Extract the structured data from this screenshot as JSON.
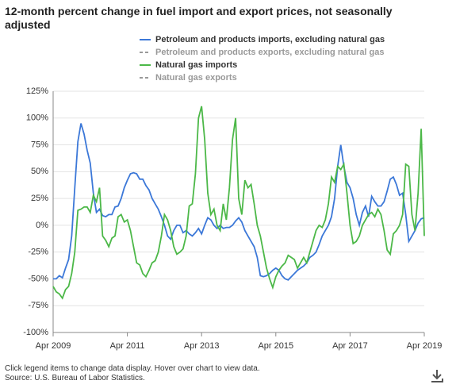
{
  "chart_data": {
    "type": "line",
    "title": "12-month percent change in fuel import and export prices, not seasonally adjusted",
    "notes": [
      "Click legend items to change data display. Hover over chart to view data.",
      "Source: U.S. Bureau of Labor Statistics."
    ],
    "categories": [
      "Apr 2009",
      "May 2009",
      "Jun 2009",
      "Jul 2009",
      "Aug 2009",
      "Sep 2009",
      "Oct 2009",
      "Nov 2009",
      "Dec 2009",
      "Jan 2010",
      "Feb 2010",
      "Mar 2010",
      "Apr 2010",
      "May 2010",
      "Jun 2010",
      "Jul 2010",
      "Aug 2010",
      "Sep 2010",
      "Oct 2010",
      "Nov 2010",
      "Dec 2010",
      "Jan 2011",
      "Feb 2011",
      "Mar 2011",
      "Apr 2011",
      "May 2011",
      "Jun 2011",
      "Jul 2011",
      "Aug 2011",
      "Sep 2011",
      "Oct 2011",
      "Nov 2011",
      "Dec 2011",
      "Jan 2012",
      "Feb 2012",
      "Mar 2012",
      "Apr 2012",
      "May 2012",
      "Jun 2012",
      "Jul 2012",
      "Aug 2012",
      "Sep 2012",
      "Oct 2012",
      "Nov 2012",
      "Dec 2012",
      "Jan 2013",
      "Feb 2013",
      "Mar 2013",
      "Apr 2013",
      "May 2013",
      "Jun 2013",
      "Jul 2013",
      "Aug 2013",
      "Sep 2013",
      "Oct 2013",
      "Nov 2013",
      "Dec 2013",
      "Jan 2014",
      "Feb 2014",
      "Mar 2014",
      "Apr 2014",
      "May 2014",
      "Jun 2014",
      "Jul 2014",
      "Aug 2014",
      "Sep 2014",
      "Oct 2014",
      "Nov 2014",
      "Dec 2014",
      "Jan 2015",
      "Feb 2015",
      "Mar 2015",
      "Apr 2015",
      "May 2015",
      "Jun 2015",
      "Jul 2015",
      "Aug 2015",
      "Sep 2015",
      "Oct 2015",
      "Nov 2015",
      "Dec 2015",
      "Jan 2016",
      "Feb 2016",
      "Mar 2016",
      "Apr 2016",
      "May 2016",
      "Jun 2016",
      "Jul 2016",
      "Aug 2016",
      "Sep 2016",
      "Oct 2016",
      "Nov 2016",
      "Dec 2016",
      "Jan 2017",
      "Feb 2017",
      "Mar 2017",
      "Apr 2017",
      "May 2017",
      "Jun 2017",
      "Jul 2017",
      "Aug 2017",
      "Sep 2017",
      "Oct 2017",
      "Nov 2017",
      "Dec 2017",
      "Jan 2018",
      "Feb 2018",
      "Mar 2018",
      "Apr 2018",
      "May 2018",
      "Jun 2018",
      "Jul 2018",
      "Aug 2018",
      "Sep 2018",
      "Oct 2018",
      "Nov 2018",
      "Dec 2018",
      "Jan 2019",
      "Feb 2019",
      "Mar 2019",
      "Apr 2019"
    ],
    "xticks": [
      "Apr 2009",
      "Apr 2011",
      "Apr 2013",
      "Apr 2015",
      "Apr 2017",
      "Apr 2019"
    ],
    "series": [
      {
        "name": "Petroleum and products imports, excluding natural gas",
        "color": "#3c78d8",
        "values": [
          -50,
          -50,
          -47,
          -49,
          -40,
          -32,
          -10,
          35,
          78,
          95,
          85,
          70,
          58,
          30,
          12,
          15,
          9,
          8,
          10,
          10,
          17,
          18,
          25,
          35,
          42,
          48,
          49,
          48,
          43,
          43,
          37,
          33,
          25,
          20,
          15,
          8,
          0,
          -10,
          -13,
          -5,
          0,
          0,
          -7,
          -5,
          -8,
          -10,
          -7,
          -3,
          -8,
          0,
          7,
          5,
          0,
          -3,
          0,
          -3,
          -2,
          -2,
          0,
          4,
          7,
          3,
          -5,
          -10,
          -15,
          -20,
          -30,
          -47,
          -48,
          -47,
          -45,
          -42,
          -40,
          -42,
          -47,
          -50,
          -51,
          -48,
          -45,
          -42,
          -40,
          -38,
          -35,
          -30,
          -28,
          -25,
          -18,
          -10,
          -5,
          0,
          8,
          25,
          55,
          75,
          55,
          40,
          35,
          25,
          10,
          0,
          12,
          18,
          8,
          27,
          22,
          18,
          18,
          22,
          32,
          43,
          45,
          38,
          28,
          30,
          10,
          -15,
          -10,
          -5,
          2,
          6,
          7
        ]
      },
      {
        "name": "Petroleum and products exports, excluding natural gas",
        "color": "#999999",
        "hidden": true
      },
      {
        "name": "Natural gas imports",
        "color": "#4cb848",
        "values": [
          -57,
          -62,
          -64,
          -68,
          -60,
          -57,
          -45,
          -25,
          14,
          15,
          17,
          17,
          12,
          28,
          22,
          35,
          -10,
          -14,
          -20,
          -12,
          -10,
          8,
          10,
          3,
          5,
          -5,
          -20,
          -35,
          -37,
          -45,
          -48,
          -42,
          -35,
          -33,
          -25,
          -10,
          10,
          5,
          -5,
          -20,
          -27,
          -25,
          -22,
          -10,
          18,
          20,
          48,
          100,
          111,
          80,
          30,
          10,
          15,
          0,
          -5,
          20,
          5,
          35,
          80,
          100,
          25,
          10,
          42,
          35,
          38,
          20,
          0,
          -10,
          -25,
          -40,
          -50,
          -58,
          -48,
          -42,
          -38,
          -35,
          -28,
          -30,
          -32,
          -40,
          -35,
          -30,
          -35,
          -25,
          -15,
          -5,
          0,
          -2,
          5,
          20,
          45,
          40,
          55,
          52,
          57,
          30,
          0,
          -17,
          -15,
          -10,
          0,
          5,
          10,
          12,
          8,
          15,
          10,
          -5,
          -23,
          -27,
          -8,
          -5,
          0,
          10,
          57,
          55,
          10,
          -5,
          30,
          90,
          -10
        ]
      },
      {
        "name": "Natural gas exports",
        "color": "#999999",
        "hidden": true
      }
    ],
    "ylim": [
      -100,
      125
    ],
    "yticks": [
      {
        "value": -100,
        "label": "-100%"
      },
      {
        "value": -75,
        "label": "-75%"
      },
      {
        "value": -50,
        "label": "-50%"
      },
      {
        "value": -25,
        "label": "-25%"
      },
      {
        "value": 0,
        "label": "0%"
      },
      {
        "value": 25,
        "label": "25%"
      },
      {
        "value": 50,
        "label": "50%"
      },
      {
        "value": 75,
        "label": "75%"
      },
      {
        "value": 100,
        "label": "100%"
      },
      {
        "value": 125,
        "label": "125%"
      }
    ],
    "grid": true
  }
}
